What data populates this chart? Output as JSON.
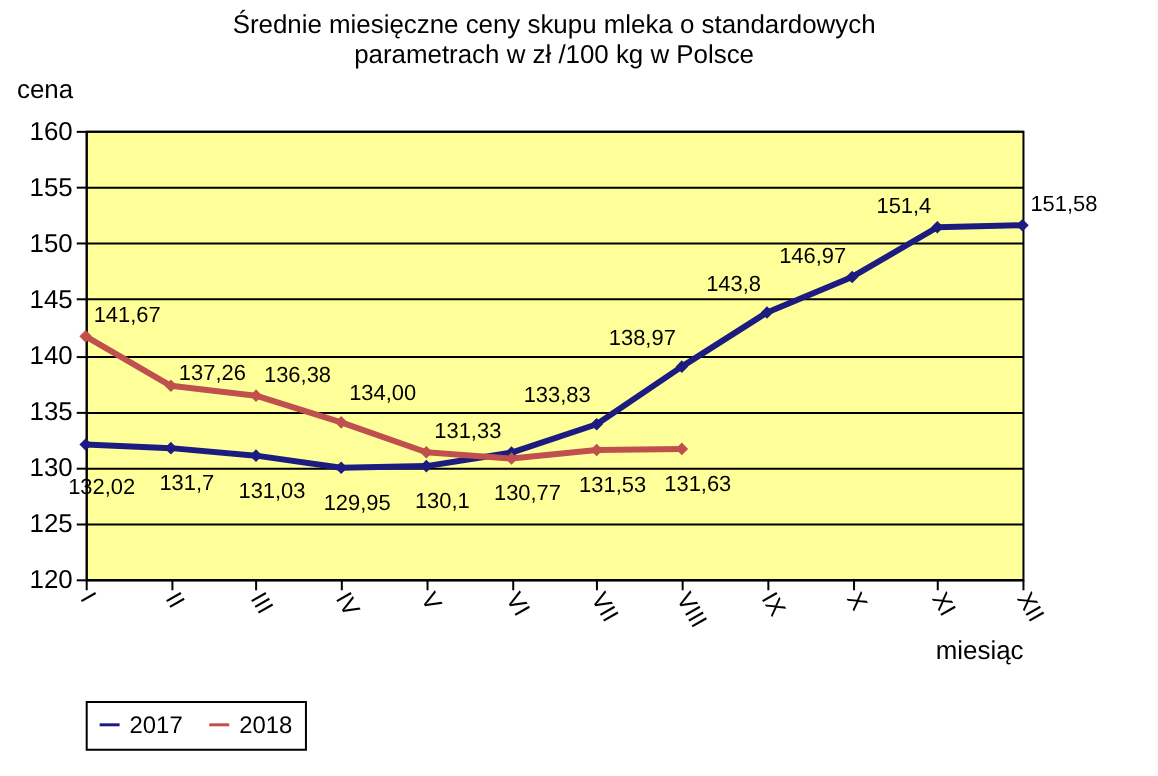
{
  "chart_data": {
    "type": "line",
    "title": [
      "Średnie miesięczne ceny skupu mleka o standardowych",
      "parametrach w zł /100 kg w Polsce"
    ],
    "xlabel": "miesiąc",
    "ylabel": "cena",
    "categories": [
      "I",
      "II",
      "III",
      "IV",
      "V",
      "VI",
      "VII",
      "VIII",
      "IX",
      "X",
      "XI",
      "XII"
    ],
    "series": [
      {
        "name": "2017",
        "color": "#1c1c80",
        "values": [
          132.02,
          131.7,
          131.03,
          129.95,
          130.1,
          131.3,
          133.83,
          138.97,
          143.8,
          146.97,
          151.4,
          151.58
        ],
        "value_labels": [
          "132,02",
          "131,7",
          "131,03",
          "129,95",
          "130,1",
          null,
          "133,83",
          "138,97",
          "143,8",
          "146,97",
          "151,4",
          "151,58"
        ]
      },
      {
        "name": "2018",
        "color": "#c0504d",
        "values": [
          141.67,
          137.26,
          136.38,
          134.0,
          131.33,
          130.77,
          131.53,
          131.63,
          null,
          null,
          null,
          null
        ],
        "value_labels": [
          "141,67",
          "137,26",
          "136,38",
          "134,00",
          "131,33",
          "130,77",
          "131,53",
          "131,63",
          null,
          null,
          null,
          null
        ]
      }
    ],
    "ylim": [
      120,
      160
    ],
    "yticks": [
      120,
      125,
      130,
      135,
      140,
      145,
      150,
      155,
      160
    ],
    "grid": "y",
    "legend": "bottom",
    "marker": "diamond",
    "line_style": "solid"
  }
}
